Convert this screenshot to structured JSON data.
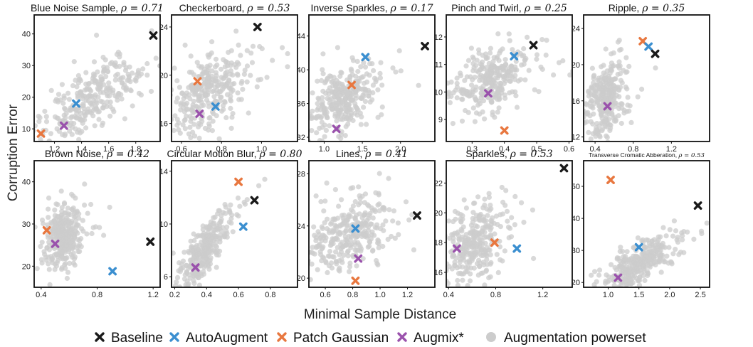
{
  "figure": {
    "ylabel": "Corruption Error",
    "xlabel": "Minimal Sample Distance",
    "legend": [
      {
        "label": "Baseline",
        "color": "#1a1a1a",
        "marker": "x"
      },
      {
        "label": "AutoAugment",
        "color": "#3b8fd0",
        "marker": "x"
      },
      {
        "label": "Patch Gaussian",
        "color": "#e8773f",
        "marker": "x"
      },
      {
        "label": "Augmix*",
        "color": "#9a52ac",
        "marker": "x"
      },
      {
        "label": "Augmentation powerset",
        "color": "#cccccc",
        "marker": "circle"
      }
    ]
  },
  "chart_data": [
    {
      "type": "scatter",
      "title": "Blue Noise Sample, ",
      "rho": "ρ = 0.71",
      "xlim": [
        1.05,
        1.98
      ],
      "ylim": [
        6,
        46
      ],
      "xticks": [
        1.2,
        1.4,
        1.6,
        1.8
      ],
      "yticks": [
        10,
        20,
        30,
        40
      ],
      "powerset": {
        "center": [
          1.45,
          19
        ],
        "slope": 26,
        "spread": [
          0.2,
          5
        ]
      },
      "baseline": [
        1.93,
        39.5
      ],
      "autoaugment": [
        1.36,
        18
      ],
      "patch_gaussian": [
        1.1,
        8.5
      ],
      "augmix": [
        1.27,
        11
      ]
    },
    {
      "type": "scatter",
      "title": "Checkerboard, ",
      "rho": "ρ = 0.53",
      "xlim": [
        0.55,
        1.18
      ],
      "ylim": [
        14.5,
        25
      ],
      "xticks": [
        0.6,
        0.8,
        1.0
      ],
      "yticks": [
        16,
        20,
        24
      ],
      "powerset": {
        "center": [
          0.72,
          18.5
        ],
        "slope": 9,
        "spread": [
          0.1,
          1.6
        ]
      },
      "baseline": [
        0.98,
        24
      ],
      "autoaugment": [
        0.77,
        17.4
      ],
      "patch_gaussian": [
        0.68,
        19.5
      ],
      "augmix": [
        0.69,
        16.8
      ]
    },
    {
      "type": "scatter",
      "title": "Inverse Sparkles, ",
      "rho": "ρ = 0.17",
      "xlim": [
        0.8,
        2.45
      ],
      "ylim": [
        31.5,
        46.5
      ],
      "xticks": [
        1.0,
        1.5,
        2.0
      ],
      "yticks": [
        32,
        36,
        40,
        44
      ],
      "powerset": {
        "center": [
          1.25,
          36.5
        ],
        "slope": 3,
        "spread": [
          0.2,
          1.9
        ]
      },
      "baseline": [
        2.32,
        42.8
      ],
      "autoaugment": [
        1.54,
        41.5
      ],
      "patch_gaussian": [
        1.36,
        38.2
      ],
      "augmix": [
        1.16,
        33
      ]
    },
    {
      "type": "scatter",
      "title": "Pinch and Twirl, ",
      "rho": "ρ = 0.25",
      "xlim": [
        0.22,
        0.61
      ],
      "ylim": [
        8.2,
        12.8
      ],
      "xticks": [
        0.3,
        0.4,
        0.5,
        0.6
      ],
      "yticks": [
        9,
        10,
        11,
        12
      ],
      "powerset": {
        "center": [
          0.36,
          10.4
        ],
        "slope": 4,
        "spread": [
          0.05,
          0.55
        ]
      },
      "baseline": [
        0.49,
        11.7
      ],
      "autoaugment": [
        0.43,
        11.3
      ],
      "patch_gaussian": [
        0.4,
        8.6
      ],
      "augmix": [
        0.35,
        9.95
      ]
    },
    {
      "type": "scatter",
      "title": "Ripple, ",
      "rho": "ρ = 0.35",
      "xlim": [
        0.28,
        1.6
      ],
      "ylim": [
        11.5,
        25.5
      ],
      "xticks": [
        0.4,
        0.8,
        1.2
      ],
      "yticks": [
        12,
        16,
        20,
        24
      ],
      "powerset": {
        "center": [
          0.52,
          16.5
        ],
        "slope": 5,
        "spread": [
          0.09,
          2.1
        ]
      },
      "baseline": [
        1.03,
        21.2
      ],
      "autoaugment": [
        0.96,
        22
      ],
      "patch_gaussian": [
        0.9,
        22.6
      ],
      "augmix": [
        0.53,
        15.4
      ]
    },
    {
      "type": "scatter",
      "title": "Brown Noise, ",
      "rho": "ρ = 0.42",
      "xlim": [
        0.35,
        1.25
      ],
      "ylim": [
        15,
        45
      ],
      "xticks": [
        0.4,
        0.8,
        1.2
      ],
      "yticks": [
        20,
        30,
        40
      ],
      "powerset": {
        "center": [
          0.56,
          27
        ],
        "slope": 8,
        "spread": [
          0.06,
          4
        ]
      },
      "baseline": [
        1.18,
        25.8
      ],
      "autoaugment": [
        0.91,
        18.8
      ],
      "patch_gaussian": [
        0.44,
        28.5
      ],
      "augmix": [
        0.5,
        25.3
      ]
    },
    {
      "type": "scatter",
      "title": "Circular Motion Blur, ",
      "rho": "ρ = 0.80",
      "xlim": [
        0.18,
        0.97
      ],
      "ylim": [
        5.2,
        14.8
      ],
      "xticks": [
        0.2,
        0.4,
        0.6,
        0.8
      ],
      "yticks": [
        6,
        10,
        14
      ],
      "powerset": {
        "center": [
          0.38,
          8
        ],
        "slope": 14,
        "spread": [
          0.07,
          0.9
        ]
      },
      "baseline": [
        0.7,
        11.8
      ],
      "autoaugment": [
        0.63,
        9.8
      ],
      "patch_gaussian": [
        0.6,
        13.2
      ],
      "augmix": [
        0.33,
        6.7
      ]
    },
    {
      "type": "scatter",
      "title": "Lines, ",
      "rho": "ρ = 0.41",
      "xlim": [
        0.48,
        1.4
      ],
      "ylim": [
        19.3,
        29
      ],
      "xticks": [
        0.6,
        0.8,
        1.0,
        1.2
      ],
      "yticks": [
        20,
        24,
        28
      ],
      "powerset": {
        "center": [
          0.78,
          23.5
        ],
        "slope": 3,
        "spread": [
          0.15,
          1.3
        ]
      },
      "baseline": [
        1.27,
        24.8
      ],
      "autoaugment": [
        0.82,
        23.8
      ],
      "patch_gaussian": [
        0.82,
        19.8
      ],
      "augmix": [
        0.84,
        21.5
      ]
    },
    {
      "type": "scatter",
      "title": "Sparkles, ",
      "rho": "ρ = 0.53",
      "xlim": [
        0.38,
        1.45
      ],
      "ylim": [
        15,
        23.5
      ],
      "xticks": [
        0.4,
        0.8,
        1.2
      ],
      "yticks": [
        16,
        18,
        20,
        22
      ],
      "powerset": {
        "center": [
          0.6,
          17.8
        ],
        "slope": 4,
        "spread": [
          0.12,
          1.2
        ]
      },
      "baseline": [
        1.38,
        23
      ],
      "autoaugment": [
        0.98,
        17.6
      ],
      "patch_gaussian": [
        0.79,
        18
      ],
      "augmix": [
        0.47,
        17.6
      ]
    },
    {
      "type": "scatter",
      "title": "Transverse Cromatic Abberation, ",
      "rho": "ρ = 0.53",
      "xlim": [
        0.6,
        2.65
      ],
      "ylim": [
        18.5,
        58
      ],
      "xticks": [
        1.0,
        1.5,
        2.0,
        2.5
      ],
      "yticks": [
        20,
        30,
        40,
        50
      ],
      "powerset": {
        "center": [
          1.5,
          26
        ],
        "slope": 10,
        "spread": [
          0.25,
          3
        ]
      },
      "baseline": [
        2.46,
        44
      ],
      "autoaugment": [
        1.5,
        31
      ],
      "patch_gaussian": [
        1.04,
        52
      ],
      "augmix": [
        1.16,
        21.5
      ]
    }
  ]
}
